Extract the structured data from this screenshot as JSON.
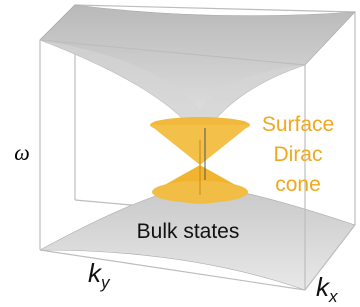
{
  "axes": {
    "omega": "ω",
    "ky": {
      "base": "k",
      "sub": "y"
    },
    "kx": {
      "base": "k",
      "sub": "x"
    }
  },
  "labels": {
    "surface": [
      "Surface",
      "Dirac",
      "cone"
    ],
    "bulk": "Bulk states"
  }
}
